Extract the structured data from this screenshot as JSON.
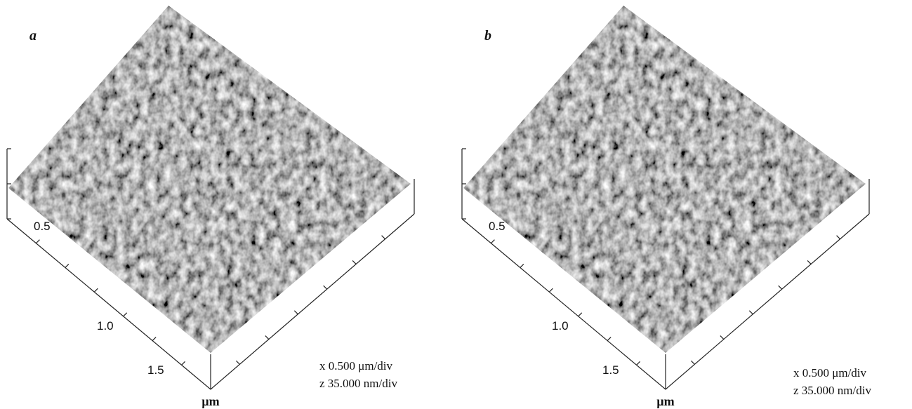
{
  "panels": [
    {
      "label": "a",
      "ticks": [
        "0.5",
        "1.0",
        "1.5"
      ],
      "unit": "μm",
      "scale": [
        "x 0.500 μm/div",
        "z 35.000 nm/div"
      ]
    },
    {
      "label": "b",
      "ticks": [
        "0.5",
        "1.0",
        "1.5"
      ],
      "unit": "μm",
      "scale": [
        "x 0.500 μm/div",
        "z 35.000 nm/div"
      ]
    }
  ]
}
